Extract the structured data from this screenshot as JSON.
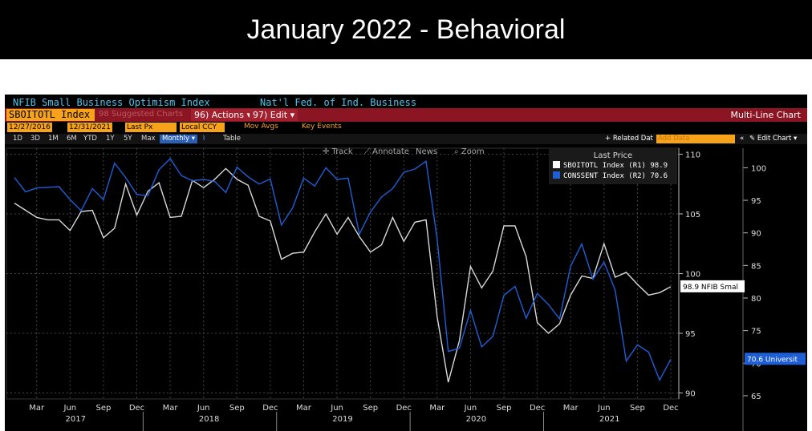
{
  "slide_title": "January 2022 - Behavioral",
  "terminal": {
    "index_name": "NFIB Small Business Optimism Index",
    "source": "Nat'l Fed. of Ind. Business",
    "ticker": "SBOITOTL Index",
    "suggested": "98 Suggested Charts",
    "actions": "96) Actions ▾",
    "edit": "97) Edit ▾",
    "chart_type": "Multi-Line Chart",
    "start_date": "12/27/2016",
    "end_date": "12/31/2021",
    "price_field": "Last Px",
    "currency": "Local CCY",
    "mov_avgs": "Mov Avgs",
    "key_events": "Key Events",
    "ranges": [
      "1D",
      "3D",
      "1M",
      "6M",
      "YTD",
      "1Y",
      "5Y",
      "Max"
    ],
    "frequency": "Monthly ▾",
    "table": "Table",
    "related": "+ Related Dat",
    "add_data": "Add Data",
    "edit_chart": "✎ Edit Chart ▾",
    "toolbar": [
      "✛ Track",
      "⟋ Annotate",
      "News",
      "⌕ Zoom"
    ],
    "legend_title": "Last Price",
    "last_tag_1": "98.9 NFIB Smal",
    "last_tag_2": "70.6 Universit"
  },
  "colors": {
    "series1": "#d9d9d9",
    "series2": "#1f5fd6",
    "accent": "#f7a21b",
    "bar": "#8b1522"
  },
  "chart_data": {
    "type": "line",
    "x": [
      "2017-01",
      "2017-02",
      "2017-03",
      "2017-04",
      "2017-05",
      "2017-06",
      "2017-07",
      "2017-08",
      "2017-09",
      "2017-10",
      "2017-11",
      "2017-12",
      "2018-01",
      "2018-02",
      "2018-03",
      "2018-04",
      "2018-05",
      "2018-06",
      "2018-07",
      "2018-08",
      "2018-09",
      "2018-10",
      "2018-11",
      "2018-12",
      "2019-01",
      "2019-02",
      "2019-03",
      "2019-04",
      "2019-05",
      "2019-06",
      "2019-07",
      "2019-08",
      "2019-09",
      "2019-10",
      "2019-11",
      "2019-12",
      "2020-01",
      "2020-02",
      "2020-03",
      "2020-04",
      "2020-05",
      "2020-06",
      "2020-07",
      "2020-08",
      "2020-09",
      "2020-10",
      "2020-11",
      "2020-12",
      "2021-01",
      "2021-02",
      "2021-03",
      "2021-04",
      "2021-05",
      "2021-06",
      "2021-07",
      "2021-08",
      "2021-09",
      "2021-10",
      "2021-11",
      "2021-12"
    ],
    "x_tick_labels": [
      "Mar",
      "Jun",
      "Sep",
      "Dec",
      "Mar",
      "Jun",
      "Sep",
      "Dec",
      "Mar",
      "Jun",
      "Sep",
      "Dec",
      "Mar",
      "Jun",
      "Sep",
      "Dec",
      "Mar",
      "Jun",
      "Sep",
      "Dec"
    ],
    "year_labels": [
      "2017",
      "2018",
      "2019",
      "2020",
      "2021"
    ],
    "series": [
      {
        "name": "SBOITOTL Index (R1) 98.9",
        "axis": "R1",
        "values": [
          105.9,
          105.3,
          104.7,
          104.5,
          104.5,
          103.6,
          105.2,
          105.3,
          103.0,
          103.8,
          107.5,
          104.9,
          106.9,
          107.6,
          104.7,
          104.8,
          107.8,
          107.2,
          107.9,
          108.8,
          107.9,
          107.4,
          104.8,
          104.4,
          101.2,
          101.7,
          101.8,
          103.5,
          105.0,
          103.3,
          104.7,
          103.1,
          101.8,
          102.4,
          104.7,
          102.7,
          104.3,
          104.5,
          96.4,
          90.9,
          94.4,
          100.6,
          98.8,
          100.2,
          104.0,
          104.0,
          101.4,
          95.9,
          95.0,
          95.8,
          98.2,
          99.8,
          99.6,
          102.5,
          99.7,
          100.1,
          99.1,
          98.2,
          98.4,
          98.9
        ]
      },
      {
        "name": "CONSSENT Index (R2) 70.6",
        "axis": "R2",
        "values": [
          98.5,
          96.3,
          96.9,
          97.0,
          97.1,
          95.1,
          93.4,
          96.8,
          95.1,
          100.7,
          98.5,
          95.9,
          95.7,
          99.7,
          101.4,
          98.8,
          98.0,
          98.2,
          97.9,
          96.2,
          100.1,
          98.6,
          97.5,
          98.3,
          91.2,
          93.8,
          98.4,
          97.2,
          100.0,
          98.2,
          98.4,
          89.8,
          93.2,
          95.5,
          96.8,
          99.3,
          99.8,
          101.0,
          89.1,
          71.8,
          72.3,
          78.1,
          72.5,
          74.1,
          80.4,
          81.8,
          76.9,
          80.7,
          79.0,
          76.8,
          84.9,
          88.3,
          82.9,
          85.5,
          81.2,
          70.3,
          72.8,
          71.7,
          67.4,
          70.6
        ]
      }
    ],
    "right_axis_1": {
      "ylim": [
        89.5,
        110.5
      ],
      "ticks": [
        90,
        95,
        100,
        105,
        110
      ]
    },
    "right_axis_2": {
      "ylim": [
        64.5,
        103
      ],
      "ticks": [
        65,
        70,
        75,
        80,
        85,
        90,
        95,
        100
      ]
    },
    "grid": true,
    "legend_placement": "top-right"
  }
}
